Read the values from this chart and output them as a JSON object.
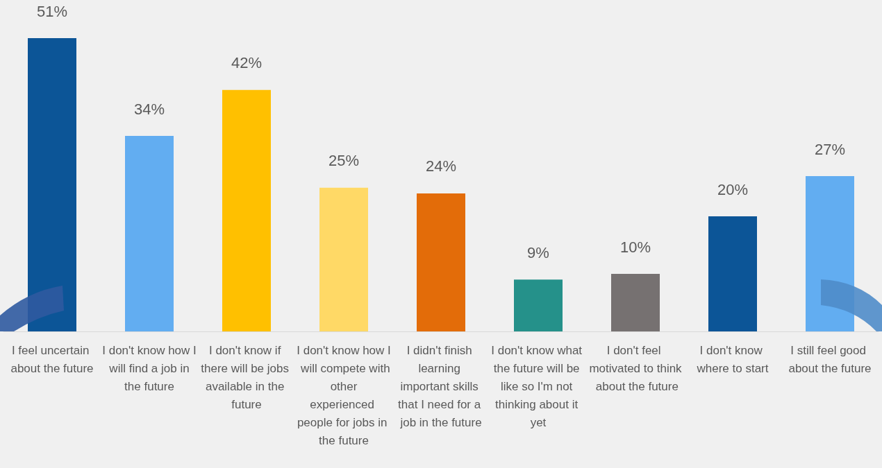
{
  "chart_data": {
    "type": "bar",
    "categories": [
      "I feel uncertain about the future",
      "I don't know how I will find a job in the future",
      "I don't know if there will be jobs available in the future",
      "I don't know how I will compete with other experienced people for jobs in the future",
      "I didn't finish learning important skills that I need for a job in the future",
      "I don't know what the future will be like so I'm not thinking about it yet",
      "I don't feel motivated to think about the future",
      "I don't know where to start",
      "I still feel good about the future"
    ],
    "values": [
      51,
      34,
      42,
      25,
      24,
      9,
      10,
      20,
      27
    ],
    "value_labels": [
      "51%",
      "34%",
      "42%",
      "25%",
      "24%",
      "9%",
      "10%",
      "20%",
      "27%"
    ],
    "colors": [
      "#0c5597",
      "#62adf1",
      "#ffc000",
      "#ffd966",
      "#e36c09",
      "#25918a",
      "#767171",
      "#0c5597",
      "#62adf1"
    ],
    "data_labels": false
  }
}
